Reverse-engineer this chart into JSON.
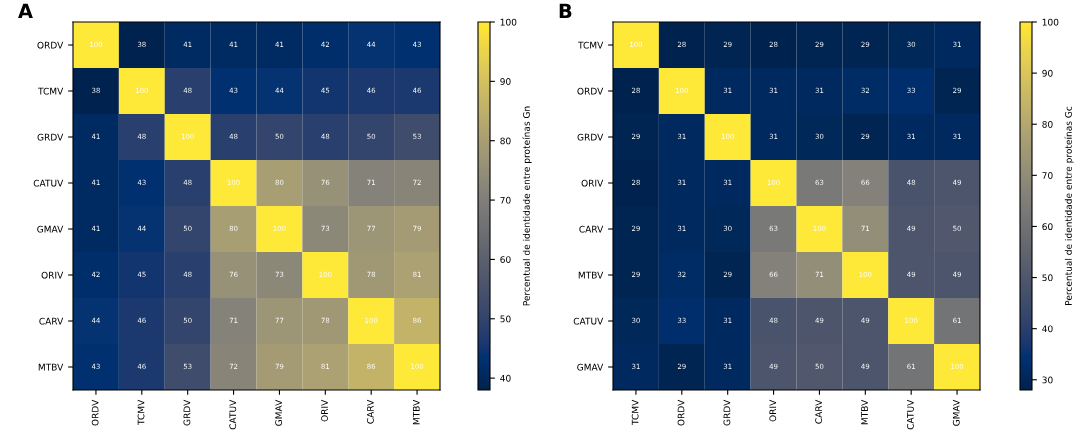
{
  "chart_data": [
    {
      "type": "heatmap",
      "title": "A",
      "clabel": "Percentual de identidade entre proteínas Gn",
      "categories": [
        "ORDV",
        "TCMV",
        "GRDV",
        "CATUV",
        "GMAV",
        "ORIV",
        "CARV",
        "MTBV"
      ],
      "y_categories": [
        "ORDV",
        "TCMV",
        "GRDV",
        "CATUV",
        "GMAV",
        "ORIV",
        "CARV",
        "MTBV"
      ],
      "cells": [
        [
          100,
          38,
          41,
          41,
          41,
          42,
          44,
          43
        ],
        [
          38,
          100,
          48,
          43,
          44,
          45,
          46,
          46
        ],
        [
          41,
          48,
          100,
          48,
          50,
          48,
          50,
          53
        ],
        [
          41,
          43,
          48,
          100,
          80,
          76,
          71,
          72
        ],
        [
          41,
          44,
          50,
          80,
          100,
          73,
          77,
          79
        ],
        [
          42,
          45,
          48,
          76,
          73,
          100,
          78,
          81
        ],
        [
          44,
          46,
          50,
          71,
          77,
          78,
          100,
          86
        ],
        [
          43,
          46,
          53,
          72,
          79,
          81,
          86,
          100
        ]
      ],
      "clim": [
        38,
        100
      ],
      "cticks": [
        40,
        50,
        60,
        70,
        80,
        90,
        100
      ],
      "data_labels": true
    },
    {
      "type": "heatmap",
      "title": "B",
      "clabel": "Percentual de identidade entre proteínas Gc",
      "categories": [
        "TCMV",
        "ORDV",
        "GRDV",
        "ORIV",
        "CARV",
        "MTBV",
        "CATUV",
        "GMAV"
      ],
      "y_categories": [
        "TCMV",
        "ORDV",
        "GRDV",
        "ORIV",
        "CARV",
        "MTBV",
        "CATUV",
        "GMAV"
      ],
      "cells": [
        [
          100,
          28,
          29,
          28,
          29,
          29,
          30,
          31
        ],
        [
          28,
          100,
          31,
          31,
          31,
          32,
          33,
          29
        ],
        [
          29,
          31,
          100,
          31,
          30,
          29,
          31,
          31
        ],
        [
          28,
          31,
          31,
          100,
          63,
          66,
          48,
          49
        ],
        [
          29,
          31,
          30,
          63,
          100,
          71,
          49,
          50
        ],
        [
          29,
          32,
          29,
          66,
          71,
          100,
          49,
          49
        ],
        [
          30,
          33,
          31,
          48,
          49,
          49,
          100,
          61
        ],
        [
          31,
          29,
          31,
          49,
          50,
          49,
          61,
          100
        ]
      ],
      "clim": [
        28,
        100
      ],
      "cticks": [
        30,
        40,
        50,
        60,
        70,
        80,
        90,
        100
      ],
      "data_labels": true
    }
  ]
}
